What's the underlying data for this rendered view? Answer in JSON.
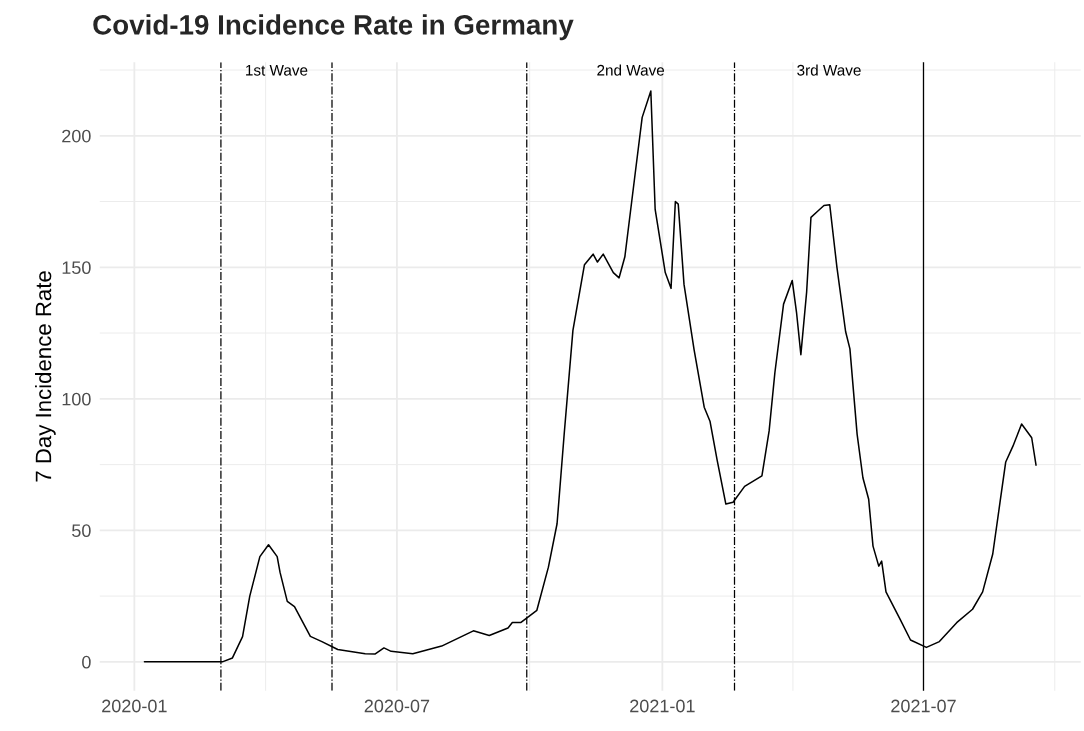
{
  "chart_data": {
    "type": "line",
    "title": "Covid-19 Incidence Rate in Germany",
    "ylabel": "7 Day Incidence Rate",
    "series": [
      {
        "color": "#000000",
        "x": [
          "2020-01-08",
          "2020-03-02",
          "2020-03-09",
          "2020-03-16",
          "2020-03-21",
          "2020-03-28",
          "2020-04-03",
          "2020-04-09",
          "2020-04-11",
          "2020-04-16",
          "2020-04-21",
          "2020-05-02",
          "2020-05-10",
          "2020-05-21",
          "2020-06-09",
          "2020-06-16",
          "2020-06-22",
          "2020-06-27",
          "2020-07-12",
          "2020-08-01",
          "2020-08-23",
          "2020-09-03",
          "2020-09-16",
          "2020-09-19",
          "2020-09-25",
          "2020-10-06",
          "2020-10-14",
          "2020-10-20",
          "2020-10-25",
          "2020-10-31",
          "2020-11-08",
          "2020-11-14",
          "2020-11-17",
          "2020-11-21",
          "2020-11-28",
          "2020-12-02",
          "2020-12-06",
          "2020-12-13",
          "2020-12-18",
          "2020-12-24",
          "2020-12-27",
          "2021-01-03",
          "2021-01-07",
          "2021-01-10",
          "2021-01-12",
          "2021-01-16",
          "2021-01-23",
          "2021-01-30",
          "2021-02-03",
          "2021-02-08",
          "2021-02-14",
          "2021-02-19",
          "2021-02-27",
          "2021-03-11",
          "2021-03-16",
          "2021-03-20",
          "2021-03-26",
          "2021-04-01",
          "2021-04-04",
          "2021-04-07",
          "2021-04-11",
          "2021-04-14",
          "2021-04-19",
          "2021-04-23",
          "2021-04-27",
          "2021-05-02",
          "2021-05-08",
          "2021-05-11",
          "2021-05-16",
          "2021-05-20",
          "2021-05-24",
          "2021-05-27",
          "2021-05-31",
          "2021-06-02",
          "2021-06-05",
          "2021-06-15",
          "2021-06-22",
          "2021-07-03",
          "2021-07-12",
          "2021-07-24",
          "2021-08-04",
          "2021-08-11",
          "2021-08-18",
          "2021-08-23",
          "2021-08-27",
          "2021-09-01",
          "2021-09-07",
          "2021-09-14",
          "2021-09-17"
        ],
        "values": [
          0,
          0,
          1.5,
          9.6,
          25,
          40,
          44.5,
          40,
          34,
          23,
          21,
          9.7,
          7.7,
          4.7,
          3.1,
          3,
          5.3,
          4,
          3.1,
          6,
          11.8,
          10,
          12.9,
          15,
          15,
          19.6,
          36,
          52.5,
          87,
          126,
          151,
          155,
          152,
          155,
          148,
          146,
          154,
          185,
          207,
          217,
          172,
          148,
          142,
          175,
          174,
          143.5,
          118.6,
          96.8,
          91.5,
          76.6,
          60,
          60.7,
          66.7,
          70.7,
          87.8,
          110,
          136,
          145,
          132.8,
          116.8,
          140.6,
          169,
          171.5,
          173.5,
          173.8,
          150,
          125.6,
          119,
          86.5,
          70,
          61.8,
          44,
          36.4,
          38.3,
          26.6,
          16,
          8.3,
          5.5,
          7.7,
          14.9,
          20,
          26.6,
          41,
          60.5,
          76,
          82,
          90.4,
          85.2,
          74.8
        ]
      }
    ],
    "xlim": [
      "2019-12-08",
      "2021-10-18"
    ],
    "xticks": [
      {
        "value": "2020-01-01",
        "label": "2020-01"
      },
      {
        "value": "2020-07-01",
        "label": "2020-07"
      },
      {
        "value": "2021-01-01",
        "label": "2021-01"
      },
      {
        "value": "2021-07-01",
        "label": "2021-07"
      }
    ],
    "ylim": [
      -11,
      228
    ],
    "yticks": [
      0,
      50,
      100,
      150,
      200
    ],
    "grid": true,
    "ref_lines": [
      {
        "axis": "x",
        "value": "2020-03-01",
        "line_style": "dashdot"
      },
      {
        "axis": "x",
        "value": "2020-05-17",
        "line_style": "dashdot"
      },
      {
        "axis": "x",
        "value": "2020-09-29",
        "line_style": "dashdot"
      },
      {
        "axis": "x",
        "value": "2021-02-20",
        "line_style": "dashdot"
      },
      {
        "axis": "x",
        "value": "2021-07-01",
        "line_style": "solid"
      }
    ],
    "annotations": [
      "1st Wave",
      "2nd Wave",
      "3rd Wave"
    ]
  }
}
